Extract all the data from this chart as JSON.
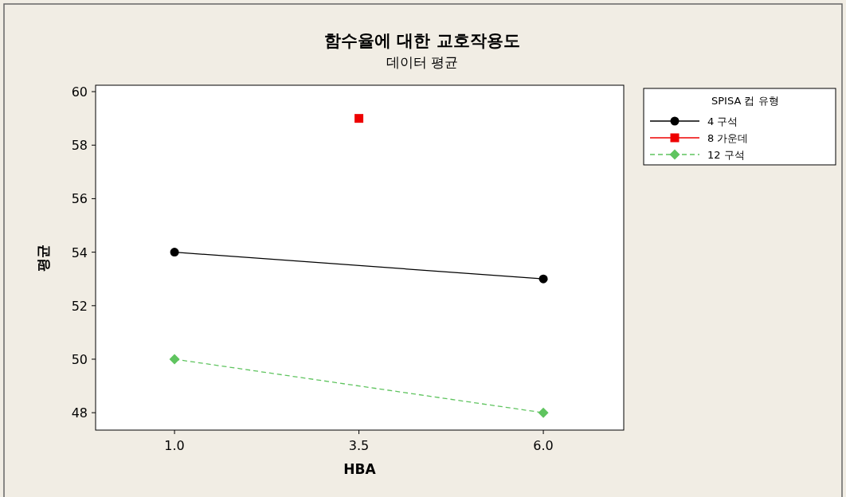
{
  "chart_data": {
    "type": "line",
    "title": "함수율에 대한 교호작용도",
    "subtitle": "데이터 평균",
    "xlabel": "HBA",
    "ylabel": "평균",
    "legend_title": "SPISA 컵 유형",
    "xlim": [
      -0.07,
      7.09
    ],
    "xticks": [
      {
        "value": 1,
        "label": "1.0"
      },
      {
        "value": 3.5,
        "label": "3.5"
      },
      {
        "value": 6,
        "label": "6.0"
      }
    ],
    "ylim": [
      47.35,
      60.24
    ],
    "yticks": [
      48,
      50,
      52,
      54,
      56,
      58,
      60
    ],
    "legend": "right",
    "grid": false,
    "series": [
      {
        "name": "4 구석",
        "color": "#000000",
        "marker": "circle",
        "line_style": "solid",
        "x": [
          1,
          6
        ],
        "values": [
          54,
          53
        ]
      },
      {
        "name": "8 가운데",
        "color": "#ee0000",
        "marker": "square",
        "line_style": "solid",
        "x": [
          3.5
        ],
        "values": [
          59
        ]
      },
      {
        "name": "12 구석",
        "color": "#5fc45f",
        "marker": "diamond",
        "line_style": "dashed",
        "x": [
          1,
          6
        ],
        "values": [
          50,
          48
        ]
      }
    ]
  }
}
